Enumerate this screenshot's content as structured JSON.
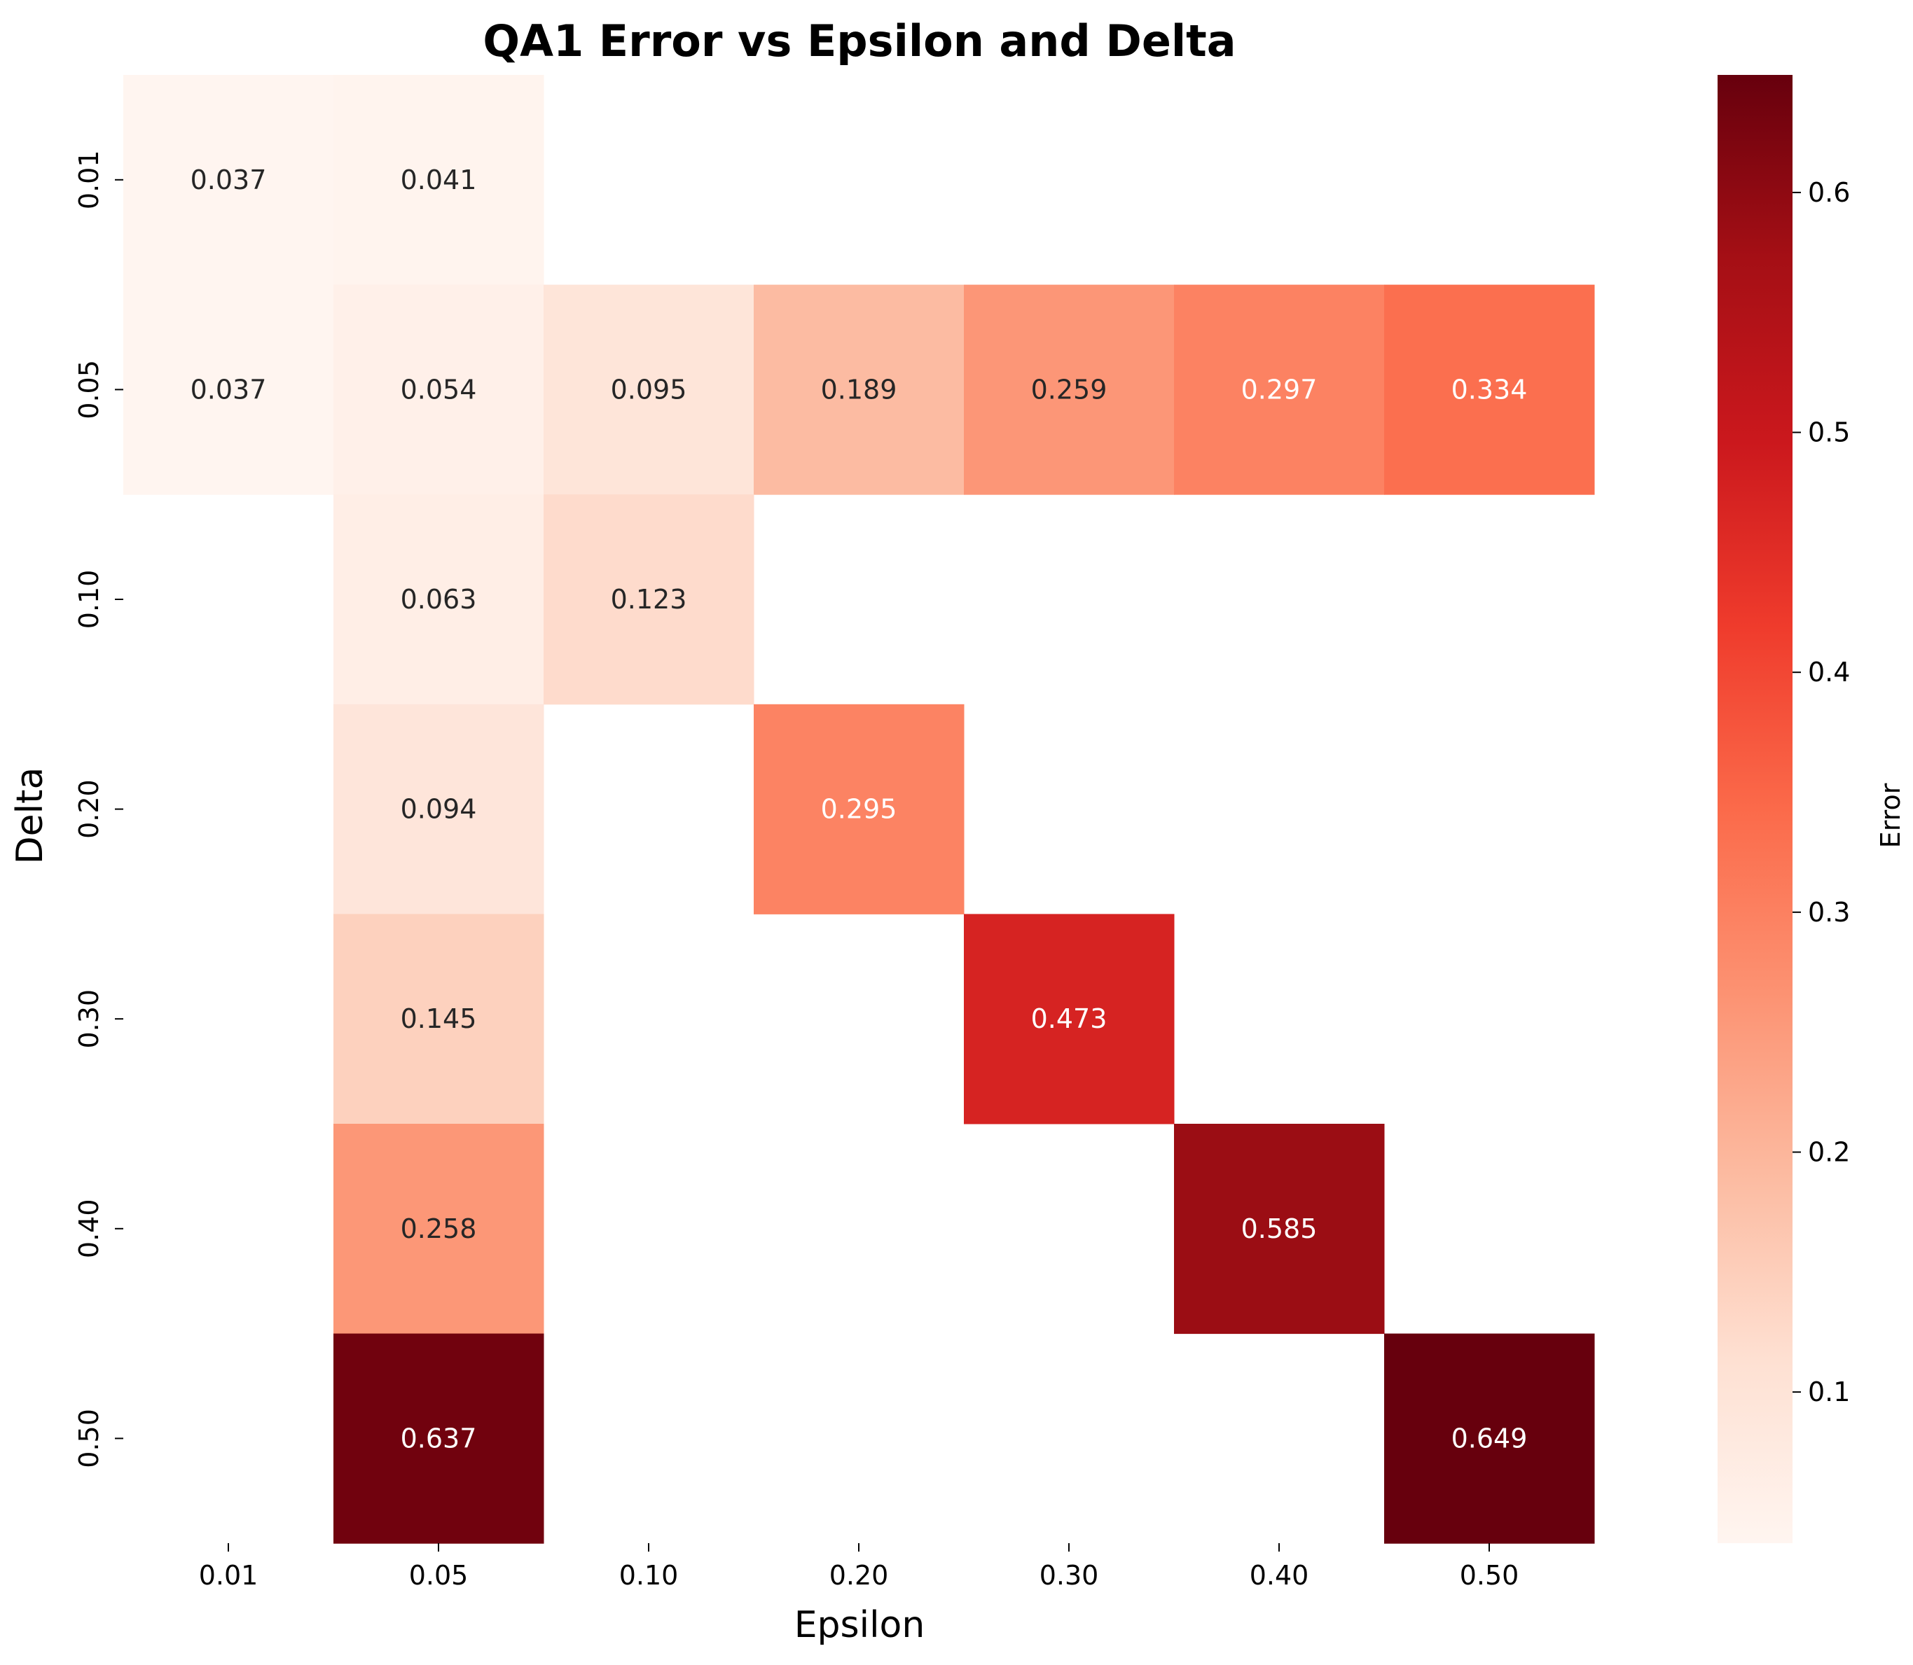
{
  "chart_data": {
    "type": "heatmap",
    "title": "QA1 Error vs Epsilon and Delta",
    "xlabel": "Epsilon",
    "ylabel": "Delta",
    "x_categories": [
      "0.01",
      "0.05",
      "0.10",
      "0.20",
      "0.30",
      "0.40",
      "0.50"
    ],
    "y_categories": [
      "0.01",
      "0.05",
      "0.10",
      "0.20",
      "0.30",
      "0.40",
      "0.50"
    ],
    "cells": [
      {
        "x": "0.01",
        "y": "0.01",
        "value": 0.037,
        "label": "0.037"
      },
      {
        "x": "0.05",
        "y": "0.01",
        "value": 0.041,
        "label": "0.041"
      },
      {
        "x": "0.01",
        "y": "0.05",
        "value": 0.037,
        "label": "0.037"
      },
      {
        "x": "0.05",
        "y": "0.05",
        "value": 0.054,
        "label": "0.054"
      },
      {
        "x": "0.10",
        "y": "0.05",
        "value": 0.095,
        "label": "0.095"
      },
      {
        "x": "0.20",
        "y": "0.05",
        "value": 0.189,
        "label": "0.189"
      },
      {
        "x": "0.30",
        "y": "0.05",
        "value": 0.259,
        "label": "0.259"
      },
      {
        "x": "0.40",
        "y": "0.05",
        "value": 0.297,
        "label": "0.297"
      },
      {
        "x": "0.50",
        "y": "0.05",
        "value": 0.334,
        "label": "0.334"
      },
      {
        "x": "0.05",
        "y": "0.10",
        "value": 0.063,
        "label": "0.063"
      },
      {
        "x": "0.10",
        "y": "0.10",
        "value": 0.123,
        "label": "0.123"
      },
      {
        "x": "0.05",
        "y": "0.20",
        "value": 0.094,
        "label": "0.094"
      },
      {
        "x": "0.20",
        "y": "0.20",
        "value": 0.295,
        "label": "0.295"
      },
      {
        "x": "0.05",
        "y": "0.30",
        "value": 0.145,
        "label": "0.145"
      },
      {
        "x": "0.30",
        "y": "0.30",
        "value": 0.473,
        "label": "0.473"
      },
      {
        "x": "0.05",
        "y": "0.40",
        "value": 0.258,
        "label": "0.258"
      },
      {
        "x": "0.40",
        "y": "0.40",
        "value": 0.585,
        "label": "0.585"
      },
      {
        "x": "0.05",
        "y": "0.50",
        "value": 0.637,
        "label": "0.637"
      },
      {
        "x": "0.50",
        "y": "0.50",
        "value": 0.649,
        "label": "0.649"
      }
    ],
    "colorbar": {
      "label": "Error",
      "range": [
        0.037,
        0.649
      ],
      "ticks": [
        "0.1",
        "0.2",
        "0.3",
        "0.4",
        "0.5",
        "0.6"
      ],
      "colormap": "Reds",
      "stops": [
        "#fff5f0",
        "#fee0d2",
        "#fcbba1",
        "#fc9272",
        "#fb6a4a",
        "#ef3b2c",
        "#cb181d",
        "#a50f15",
        "#67000d"
      ]
    },
    "grid": false
  }
}
